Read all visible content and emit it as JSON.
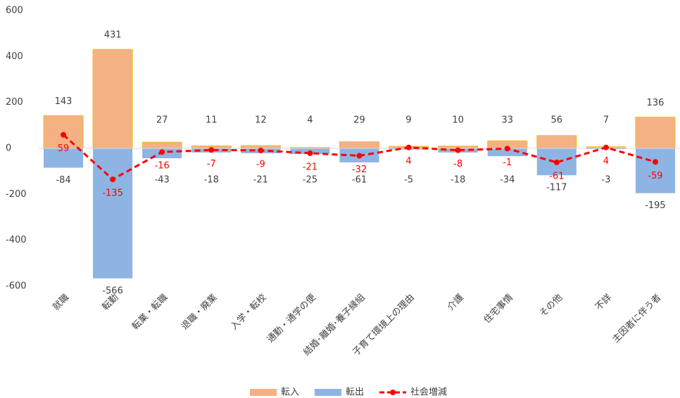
{
  "chart_data": {
    "type": "bar",
    "categories": [
      "就職",
      "転勤",
      "転業・転職",
      "退職・廃業",
      "入学・転校",
      "通勤・通学の便",
      "結婚･離婚･養子縁組",
      "子育て環境上の理由",
      "介護",
      "住宅事情",
      "その他",
      "不詳",
      "主因者に伴う者"
    ],
    "series": [
      {
        "name": "転入",
        "type": "bar",
        "color": "#f4b183",
        "values": [
          143,
          431,
          27,
          11,
          12,
          4,
          29,
          9,
          10,
          33,
          56,
          7,
          136
        ]
      },
      {
        "name": "転出",
        "type": "bar",
        "color": "#8eb4e3",
        "values": [
          -84,
          -566,
          -43,
          -18,
          -21,
          -25,
          -61,
          -5,
          -18,
          -34,
          -117,
          -3,
          -195
        ]
      },
      {
        "name": "社会増減",
        "type": "line",
        "color": "#ff0000",
        "values": [
          59,
          -135,
          -16,
          -7,
          -9,
          -21,
          -32,
          4,
          -8,
          -1,
          -61,
          4,
          -59
        ]
      }
    ],
    "ylim": [
      -600,
      600
    ],
    "yticks": [
      600,
      400,
      200,
      0,
      -200,
      -400,
      -600
    ],
    "legend": "bottom"
  }
}
